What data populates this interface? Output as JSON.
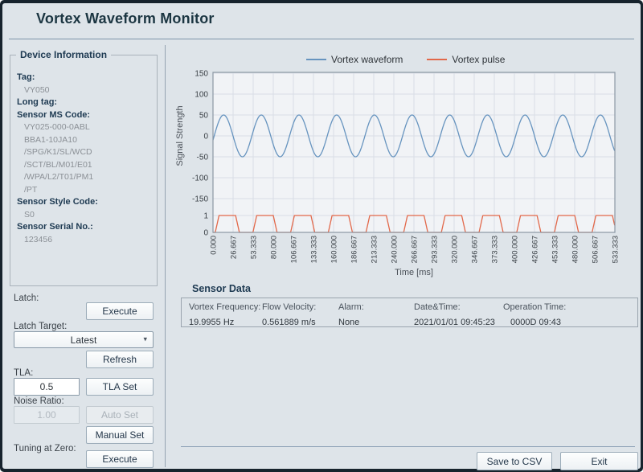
{
  "window": {
    "title": "Vortex Waveform Monitor"
  },
  "device_info": {
    "title": "Device Information",
    "fields": [
      {
        "label": "Tag:",
        "values": [
          "VY050"
        ]
      },
      {
        "label": "Long tag:",
        "values": []
      },
      {
        "label": "Sensor MS Code:",
        "values": [
          "VY025-000-0ABL",
          "BBA1-10JA10",
          "/SPG/K1/SL/WCD",
          "/SCT/BL/M01/E01",
          "/WPA/L2/T01/PM1",
          "/PT"
        ]
      },
      {
        "label": "Sensor Style Code:",
        "values": [
          "S0"
        ]
      },
      {
        "label": "Sensor Serial No.:",
        "values": [
          "123456"
        ]
      }
    ]
  },
  "controls": {
    "latch_label": "Latch:",
    "latch_execute": "Execute",
    "latch_target_label": "Latch Target:",
    "latch_target_value": "Latest",
    "refresh": "Refresh",
    "tla_label": "TLA:",
    "tla_value": "0.5",
    "tla_set": "TLA Set",
    "noise_ratio_label": "Noise Ratio:",
    "noise_ratio_value": "1.00",
    "auto_set": "Auto Set",
    "manual_set": "Manual Set",
    "tuning_label": "Tuning at Zero:",
    "tuning_execute": "Execute"
  },
  "sensor_data": {
    "title": "Sensor Data",
    "columns": [
      {
        "label": "Vortex Frequency:",
        "value": "19.9955 Hz"
      },
      {
        "label": "Flow Velocity:",
        "value": "0.561889 m/s"
      },
      {
        "label": "Alarm:",
        "value": "None"
      },
      {
        "label": "Date&Time:",
        "value": "2021/01/01 09:45:23"
      },
      {
        "label": "Operation Time:",
        "value": "0000D 09:43"
      }
    ]
  },
  "footer": {
    "save_csv": "Save to CSV",
    "exit": "Exit"
  },
  "chart_data": {
    "type": "line",
    "title": "",
    "xlabel": "Time [ms]",
    "ylabel": "Signal Strength",
    "x_range": [
      0,
      533.333
    ],
    "x_tick_labels": [
      "0.000",
      "26.667",
      "53.333",
      "80.000",
      "106.667",
      "133.333",
      "160.000",
      "186.667",
      "213.333",
      "240.000",
      "266.667",
      "293.333",
      "320.000",
      "346.667",
      "373.333",
      "400.000",
      "426.667",
      "453.333",
      "480.000",
      "506.667",
      "533.333"
    ],
    "main_ylim": [
      -150,
      150
    ],
    "main_yticks": [
      150,
      100,
      50,
      0,
      -50,
      -100,
      -150
    ],
    "pulse_yticks": [
      1,
      0
    ],
    "grid": true,
    "legend_position": "top",
    "colors": {
      "plot_bg": "#f1f3f6",
      "grid": "#d9dee6",
      "plot_border": "#8b98a4",
      "tick_text": "#3a4046",
      "axis_text": "#4a5058"
    },
    "series": [
      {
        "name": "Vortex waveform",
        "color": "#6794bf",
        "shape": "sine",
        "amplitude": 50,
        "frequency_hz": 19.9955,
        "phase_rad": -0.2
      },
      {
        "name": "Vortex pulse",
        "color": "#e2684a",
        "shape": "trapezoid-pulse",
        "low": 0,
        "high": 1,
        "frequency_hz": 19.9955,
        "rise_start_ms": 3,
        "rise_end_ms": 8,
        "fall_start_ms": 30,
        "fall_end_ms": 35
      }
    ]
  }
}
